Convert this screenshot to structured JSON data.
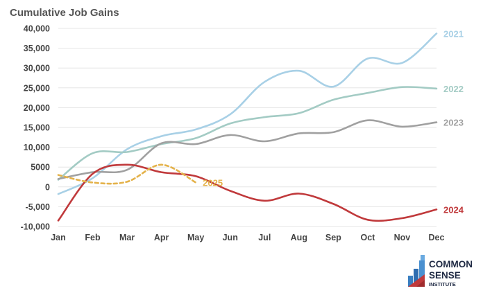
{
  "chart_data": {
    "type": "line",
    "title": "Cumulative Job Gains",
    "categories": [
      "Jan",
      "Feb",
      "Mar",
      "Apr",
      "May",
      "Jun",
      "Jul",
      "Aug",
      "Sep",
      "Oct",
      "Nov",
      "Dec"
    ],
    "ylim": [
      -10000,
      40000
    ],
    "yticks": [
      -10000,
      -5000,
      0,
      5000,
      10000,
      15000,
      20000,
      25000,
      30000,
      35000,
      40000
    ],
    "ytick_labels": [
      "-10,000",
      "-5,000",
      "0",
      "5000",
      "10,000",
      "15,000",
      "20,000",
      "25,000",
      "30,000",
      "35,000",
      "40,000"
    ],
    "grid": "horizontal",
    "legend": "labels at line ends",
    "series": [
      {
        "name": "2021",
        "color": "#a8d0e6",
        "dashed": false,
        "values": [
          -1800,
          2200,
          9500,
          12800,
          14500,
          18300,
          26500,
          29300,
          25300,
          32400,
          31300,
          38700
        ]
      },
      {
        "name": "2022",
        "color": "#a3cbc4",
        "dashed": false,
        "values": [
          1800,
          8500,
          8800,
          10800,
          12300,
          16000,
          17600,
          18600,
          22000,
          23700,
          25200,
          24800
        ]
      },
      {
        "name": "2023",
        "color": "#a0a0a0",
        "dashed": false,
        "values": [
          2000,
          3700,
          4300,
          11000,
          10800,
          13100,
          11500,
          13500,
          13800,
          16800,
          15200,
          16300
        ]
      },
      {
        "name": "2024",
        "color": "#c0393b",
        "dashed": false,
        "values": [
          -8500,
          3300,
          5600,
          3700,
          2700,
          -1000,
          -3500,
          -1700,
          -4300,
          -8300,
          -7900,
          -5700
        ]
      },
      {
        "name": "2025",
        "color": "#e4b24a",
        "dashed": true,
        "values": [
          3000,
          1100,
          1300,
          5600,
          1100,
          null,
          null,
          null,
          null,
          null,
          null,
          null
        ]
      }
    ]
  },
  "logo": {
    "line1": "COMMON",
    "line2": "SENSE",
    "line3": "INSTITUTE"
  }
}
